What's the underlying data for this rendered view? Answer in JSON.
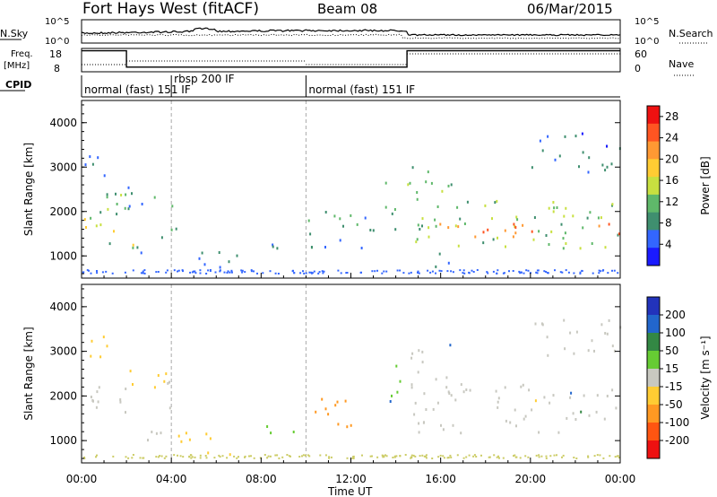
{
  "header": {
    "site": "Fort Hays West (fitACF)",
    "beam": "Beam 08",
    "date": "06/Mar/2015"
  },
  "top_panels": {
    "nsky_label": "N.Sky",
    "nsearch_label": "N.Search",
    "noise_ticks": [
      "10^5",
      "10^0"
    ],
    "freq_label_1": "Freq.",
    "freq_label_2": "[MHz]",
    "freq_ticks": [
      "18",
      "8"
    ],
    "nave_label": "Nave",
    "nave_ticks": [
      "60",
      "0"
    ],
    "cpid_label": "CPID"
  },
  "cpid_segments": [
    {
      "start": 0,
      "end": 4,
      "label": "normal (fast) 151 IF"
    },
    {
      "start": 4,
      "end": 10,
      "label": "rbsp 200 IF"
    },
    {
      "start": 10,
      "end": 24,
      "label": "normal (fast) 151 IF"
    }
  ],
  "chart_data": [
    {
      "type": "heatmap",
      "panel": "power",
      "ylabel": "Slant Range [km]",
      "xlabel": "",
      "xlim": [
        0,
        24
      ],
      "ylim": [
        500,
        4500
      ],
      "yticks": [
        1000,
        2000,
        3000,
        4000
      ],
      "colorbar": {
        "label": "Power [dB]",
        "ticks": [
          4,
          8,
          12,
          16,
          20,
          24,
          28
        ],
        "range": [
          0,
          30
        ],
        "colors": [
          "#1a1aff",
          "#3366ff",
          "#3f8f6f",
          "#5fb86a",
          "#c8e040",
          "#ffcc33",
          "#ff9933",
          "#ff5522",
          "#ee1111"
        ]
      },
      "regions": [
        {
          "x0": 0.0,
          "x1": 2.0,
          "y0": 1300,
          "y1": 2500,
          "value": 10
        },
        {
          "x0": 0.0,
          "x1": 2.0,
          "y0": 1550,
          "y1": 1950,
          "value": 18
        },
        {
          "x0": 0.0,
          "x1": 1.2,
          "y0": 2800,
          "y1": 3500,
          "value": 6
        },
        {
          "x0": 2.0,
          "x1": 3.6,
          "y0": 1000,
          "y1": 1500,
          "value": 8
        },
        {
          "x0": 2.0,
          "x1": 3.2,
          "y0": 1150,
          "y1": 1350,
          "value": 16
        },
        {
          "x0": 2.0,
          "x1": 3.8,
          "y0": 2000,
          "y1": 2600,
          "value": 6
        },
        {
          "x0": 3.6,
          "x1": 4.2,
          "y0": 1500,
          "y1": 2400,
          "value": 7
        },
        {
          "x0": 4.2,
          "x1": 7.0,
          "y0": 700,
          "y1": 1200,
          "value": 6
        },
        {
          "x0": 7.0,
          "x1": 10.0,
          "y0": 1200,
          "y1": 1400,
          "value": 6
        },
        {
          "x0": 10.0,
          "x1": 12.2,
          "y0": 1200,
          "y1": 2100,
          "value": 8
        },
        {
          "x0": 12.2,
          "x1": 13.4,
          "y0": 1200,
          "y1": 2000,
          "value": 6
        },
        {
          "x0": 13.5,
          "x1": 14.2,
          "y0": 1500,
          "y1": 2900,
          "value": 9
        },
        {
          "x0": 14.5,
          "x1": 24.0,
          "y0": 1200,
          "y1": 2300,
          "value": 12
        },
        {
          "x0": 14.5,
          "x1": 24.0,
          "y0": 1450,
          "y1": 1750,
          "value": 24
        },
        {
          "x0": 14.5,
          "x1": 16.5,
          "y0": 2200,
          "y1": 3200,
          "value": 10
        },
        {
          "x0": 15.0,
          "x1": 16.5,
          "y0": 700,
          "y1": 1100,
          "value": 6
        },
        {
          "x0": 20.0,
          "x1": 24.0,
          "y0": 2900,
          "y1": 3800,
          "value": 5
        }
      ]
    },
    {
      "type": "heatmap",
      "panel": "velocity",
      "ylabel": "Slant Range [km]",
      "xlabel": "Time UT",
      "xlim": [
        0,
        24
      ],
      "ylim": [
        500,
        4500
      ],
      "yticks": [
        1000,
        2000,
        3000,
        4000
      ],
      "xticks": [
        "00:00",
        "04:00",
        "08:00",
        "12:00",
        "16:00",
        "20:00",
        "00:00"
      ],
      "colorbar": {
        "label": "Velocity [m s⁻¹]",
        "ticks": [
          200,
          100,
          50,
          15,
          -15,
          -50,
          -100,
          -200
        ],
        "range": [
          -250,
          250
        ],
        "colors": [
          "#2233bb",
          "#2266cc",
          "#338844",
          "#66cc33",
          "#c8c8c0",
          "#ffcc33",
          "#ff9922",
          "#ff5511",
          "#ee1111"
        ]
      },
      "regions": [
        {
          "x0": 0.0,
          "x1": 2.0,
          "y0": 1300,
          "y1": 2300,
          "value": 0
        },
        {
          "x0": 0.0,
          "x1": 1.2,
          "y0": 2800,
          "y1": 3500,
          "value": -40
        },
        {
          "x0": 2.0,
          "x1": 3.6,
          "y0": 1000,
          "y1": 1500,
          "value": 0
        },
        {
          "x0": 2.0,
          "x1": 3.8,
          "y0": 2000,
          "y1": 2600,
          "value": -60
        },
        {
          "x0": 3.6,
          "x1": 4.2,
          "y0": 1500,
          "y1": 2400,
          "value": 0
        },
        {
          "x0": 4.2,
          "x1": 7.0,
          "y0": 700,
          "y1": 1200,
          "value": -80
        },
        {
          "x0": 7.0,
          "x1": 10.0,
          "y0": 1200,
          "y1": 1400,
          "value": 40
        },
        {
          "x0": 10.0,
          "x1": 12.2,
          "y0": 1300,
          "y1": 2100,
          "value": -110
        },
        {
          "x0": 13.5,
          "x1": 14.2,
          "y0": 1500,
          "y1": 2900,
          "value": 40
        },
        {
          "x0": 14.5,
          "x1": 24.0,
          "y0": 1200,
          "y1": 2300,
          "value": 0
        },
        {
          "x0": 14.5,
          "x1": 16.5,
          "y0": 2200,
          "y1": 3200,
          "value": 0
        },
        {
          "x0": 20.0,
          "x1": 24.0,
          "y0": 2900,
          "y1": 3800,
          "value": 0
        }
      ]
    }
  ],
  "freq_series": [
    {
      "start": 0,
      "end": 2,
      "mhz": 17
    },
    {
      "start": 2,
      "end": 14.5,
      "mhz": 10
    },
    {
      "start": 14.5,
      "end": 24,
      "mhz": 17
    }
  ]
}
